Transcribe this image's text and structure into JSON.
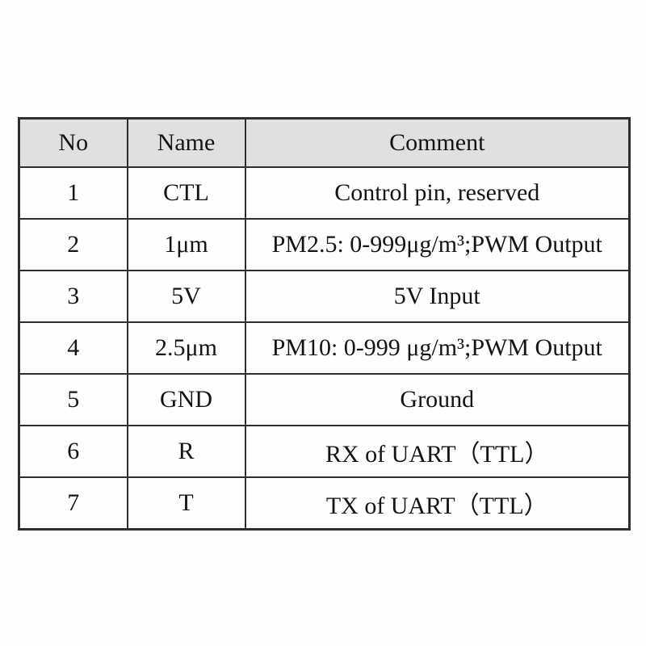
{
  "table": {
    "headers": {
      "no": "No",
      "name": "Name",
      "comment": "Comment"
    },
    "rows": [
      {
        "no": "1",
        "name": "CTL",
        "comment": "Control pin, reserved"
      },
      {
        "no": "2",
        "name": "1μm",
        "comment": "PM2.5: 0-999μg/m³;PWM Output"
      },
      {
        "no": "3",
        "name": "5V",
        "comment": "5V Input"
      },
      {
        "no": "4",
        "name": "2.5μm",
        "comment": "PM10: 0-999 μg/m³;PWM Output"
      },
      {
        "no": "5",
        "name": "GND",
        "comment": "Ground"
      },
      {
        "no": "6",
        "name": "R",
        "comment": "RX of UART（TTL）"
      },
      {
        "no": "7",
        "name": "T",
        "comment": "TX of UART（TTL）"
      }
    ],
    "colors": {
      "header_background": "#e0e0e0",
      "border": "#2e2e2e",
      "text": "#141414",
      "page_background": "#fefefe"
    }
  }
}
